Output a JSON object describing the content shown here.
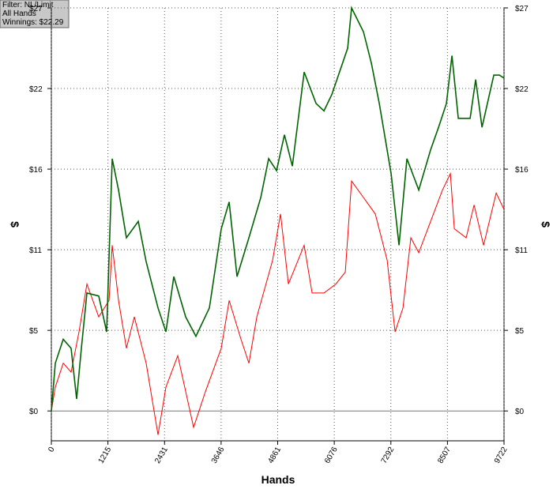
{
  "chart_data": {
    "type": "line",
    "info": [
      "Filter: NL/Limit",
      "All Hands",
      "Winnings: $22.29"
    ],
    "x_label": "Hands",
    "y_label": "$",
    "xlim": [
      0,
      9722
    ],
    "xticks": [
      0,
      1215,
      2431,
      3646,
      4861,
      6076,
      7292,
      8507,
      9722
    ],
    "ylim": [
      -2,
      27
    ],
    "yticks": [
      {
        "value": 0,
        "label": "$0"
      },
      {
        "value": 5.4,
        "label": "$5"
      },
      {
        "value": 10.8,
        "label": "$11"
      },
      {
        "value": 16.2,
        "label": "$16"
      },
      {
        "value": 21.6,
        "label": "$22"
      },
      {
        "value": 27,
        "label": "$27"
      }
    ],
    "grid": true,
    "series": [
      {
        "color": "#006400",
        "x": [
          0,
          85,
          255,
          424,
          543,
          645,
          764,
          1018,
          1188,
          1307,
          1443,
          1612,
          1867,
          2036,
          2291,
          2461,
          2630,
          2885,
          3105,
          3394,
          3649,
          3819,
          3988,
          4243,
          4498,
          4667,
          4837,
          5006,
          5176,
          5430,
          5685,
          5855,
          6024,
          6364,
          6448,
          6703,
          6873,
          7043,
          7297,
          7467,
          7637,
          7891,
          8146,
          8316,
          8485,
          8604,
          8740,
          8994,
          9113,
          9249,
          9503,
          9622,
          9722
        ],
        "values": [
          0,
          3.2,
          4.8,
          4.2,
          0.8,
          4.2,
          7.9,
          7.7,
          5.3,
          16.9,
          14.8,
          11.6,
          12.7,
          10,
          6.9,
          5.3,
          9,
          6.3,
          5,
          6.9,
          12.2,
          14,
          9,
          11.6,
          14.3,
          16.9,
          16.1,
          18.5,
          16.4,
          22.7,
          20.6,
          20.1,
          21.2,
          24.3,
          27,
          25.4,
          23.3,
          20.6,
          15.9,
          11.1,
          16.9,
          14.8,
          17.5,
          19,
          20.6,
          23.8,
          19.6,
          19.6,
          22.2,
          19,
          22.5,
          22.5,
          22.3
        ]
      },
      {
        "color": "#ff0000",
        "x": [
          0,
          85,
          255,
          424,
          594,
          764,
          1018,
          1239,
          1307,
          1443,
          1612,
          1782,
          2036,
          2291,
          2461,
          2715,
          3055,
          3309,
          3649,
          3819,
          4073,
          4243,
          4413,
          4752,
          4922,
          5091,
          5430,
          5600,
          5855,
          6109,
          6313,
          6448,
          6703,
          6957,
          7212,
          7382,
          7552,
          7721,
          7891,
          8146,
          8400,
          8570,
          8655,
          8909,
          9079,
          9283,
          9554,
          9722
        ],
        "values": [
          0,
          1.6,
          3.2,
          2.6,
          5.3,
          8.5,
          6.3,
          7.4,
          11.1,
          7.4,
          4.2,
          6.3,
          3.2,
          -1.6,
          1.6,
          3.7,
          -1.1,
          1.3,
          4.2,
          7.4,
          4.8,
          3.2,
          6.3,
          10.1,
          13.2,
          8.5,
          11.1,
          7.9,
          7.9,
          8.5,
          9.3,
          15.4,
          14.3,
          13.2,
          10.1,
          5.3,
          6.9,
          11.6,
          10.6,
          12.7,
          14.8,
          15.9,
          12.2,
          11.6,
          13.8,
          11.1,
          14.6,
          13.5
        ]
      }
    ]
  }
}
